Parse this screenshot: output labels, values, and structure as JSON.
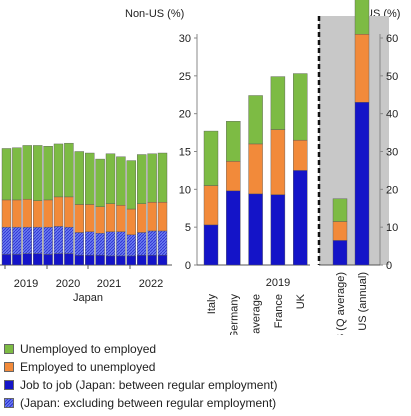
{
  "colors": {
    "ue": "#7dbb44",
    "eu": "#f28a3a",
    "jj": "#1414c8",
    "jx": "#6a7df0",
    "shade": "#c8c8c8"
  },
  "chart_data": {
    "type": "bar",
    "stacked": true,
    "left_axis": {
      "label": "Non-US (%)",
      "ylim": [
        0,
        30
      ],
      "ticks": [
        0,
        5,
        10,
        15,
        20,
        25,
        30
      ]
    },
    "right_axis": {
      "label": "US (%)",
      "ylim": [
        0,
        60
      ],
      "ticks": [
        0,
        10,
        20,
        30,
        40,
        50,
        60
      ]
    },
    "japan": {
      "title": "Japan",
      "year_labels": [
        "2019",
        "2020",
        "2021",
        "2022"
      ],
      "bars": [
        {
          "jj": 1.4,
          "jx": 3.6,
          "eu": 3.6,
          "ue": 6.8
        },
        {
          "jj": 1.4,
          "jx": 3.6,
          "eu": 3.6,
          "ue": 6.9
        },
        {
          "jj": 1.5,
          "jx": 3.5,
          "eu": 3.7,
          "ue": 7.1
        },
        {
          "jj": 1.5,
          "jx": 3.5,
          "eu": 3.5,
          "ue": 7.3
        },
        {
          "jj": 1.4,
          "jx": 3.6,
          "eu": 3.6,
          "ue": 7.1
        },
        {
          "jj": 1.5,
          "jx": 3.6,
          "eu": 3.9,
          "ue": 7.0
        },
        {
          "jj": 1.5,
          "jx": 3.5,
          "eu": 4.0,
          "ue": 7.1
        },
        {
          "jj": 1.3,
          "jx": 3.0,
          "eu": 3.7,
          "ue": 7.0
        },
        {
          "jj": 1.3,
          "jx": 3.1,
          "eu": 3.6,
          "ue": 6.8
        },
        {
          "jj": 1.3,
          "jx": 2.9,
          "eu": 3.5,
          "ue": 6.3
        },
        {
          "jj": 1.2,
          "jx": 3.2,
          "eu": 3.7,
          "ue": 6.6
        },
        {
          "jj": 1.2,
          "jx": 3.2,
          "eu": 3.5,
          "ue": 6.4
        },
        {
          "jj": 1.2,
          "jx": 2.8,
          "eu": 3.4,
          "ue": 6.4
        },
        {
          "jj": 1.3,
          "jx": 3.0,
          "eu": 3.8,
          "ue": 6.5
        },
        {
          "jj": 1.3,
          "jx": 3.2,
          "eu": 3.8,
          "ue": 6.4
        },
        {
          "jj": 1.3,
          "jx": 3.2,
          "eu": 3.8,
          "ue": 6.5
        }
      ]
    },
    "countries": {
      "year_label": "2019",
      "categories": [
        "Italy",
        "Germany",
        "OECD average",
        "France",
        "UK"
      ],
      "series": [
        {
          "key": "jj",
          "values": [
            5.3,
            9.8,
            9.4,
            9.3,
            12.5
          ]
        },
        {
          "key": "eu",
          "values": [
            5.2,
            3.9,
            6.6,
            8.6,
            4.0
          ]
        },
        {
          "key": "ue",
          "values": [
            7.2,
            5.3,
            6.4,
            7.0,
            8.8
          ]
        }
      ]
    },
    "us": {
      "categories": [
        "US (Q average)",
        "US (annual)"
      ],
      "series": [
        {
          "key": "jj",
          "values": [
            6.5,
            43.0
          ]
        },
        {
          "key": "eu",
          "values": [
            5.0,
            18.0
          ]
        },
        {
          "key": "ue",
          "values": [
            6.0,
            39.0
          ]
        }
      ]
    },
    "legend": [
      {
        "key": "ue",
        "label": "Unemployed to employed"
      },
      {
        "key": "eu",
        "label": "Employed to unemployed"
      },
      {
        "key": "jj",
        "label": "Job to job (Japan: between regular employment)"
      },
      {
        "key": "jx",
        "label": "(Japan: excluding between regular employment)"
      }
    ]
  }
}
